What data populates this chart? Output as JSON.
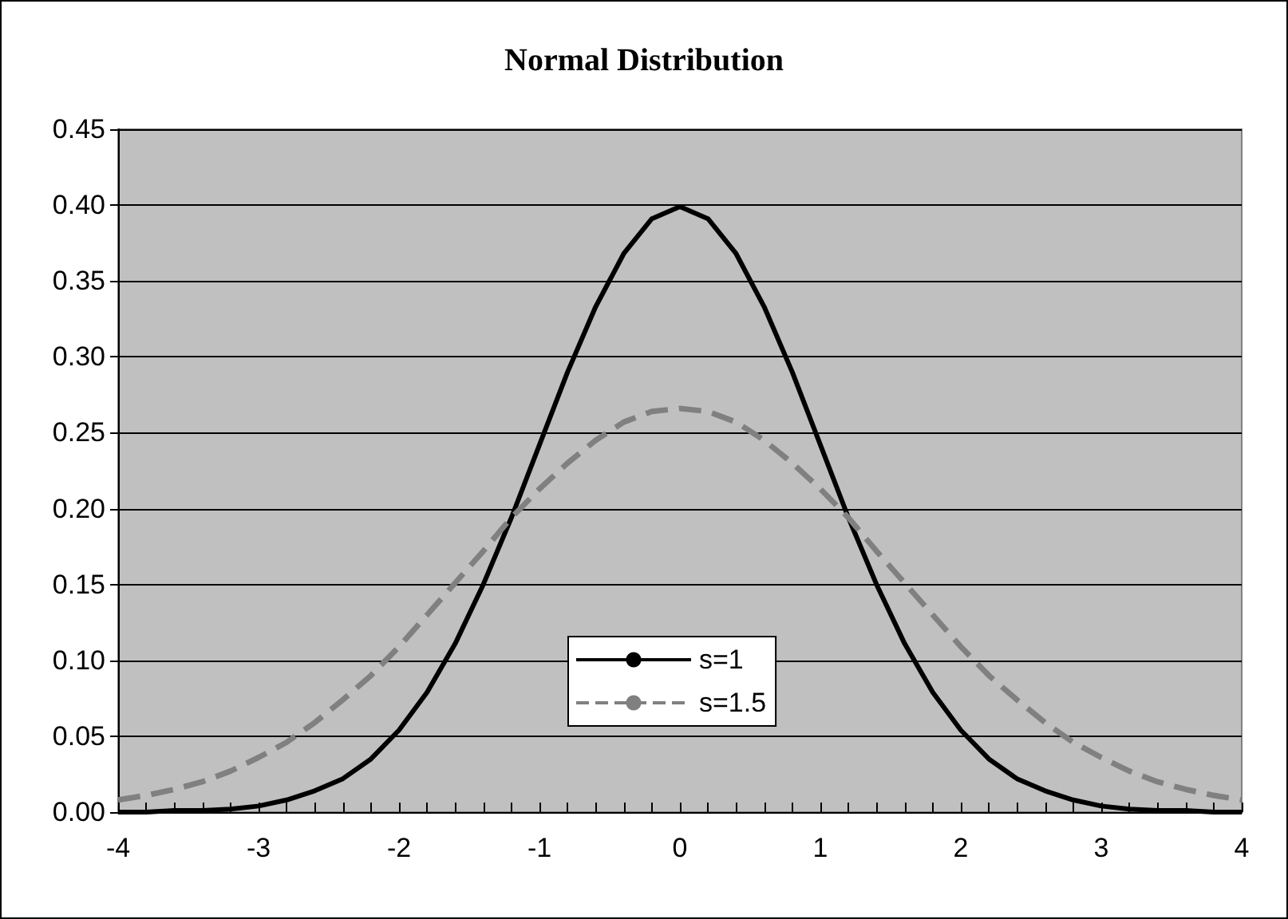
{
  "chart_data": {
    "type": "line",
    "title": "Normal Distribution",
    "x": [
      -4,
      -3.8,
      -3.6,
      -3.4,
      -3.2,
      -3,
      -2.8,
      -2.6,
      -2.4,
      -2.2,
      -2,
      -1.8,
      -1.6,
      -1.4,
      -1.2,
      -1,
      -0.8,
      -0.6,
      -0.4,
      -0.2,
      0,
      0.2,
      0.4,
      0.6,
      0.8,
      1,
      1.2,
      1.4,
      1.6,
      1.8,
      2,
      2.2,
      2.4,
      2.6,
      2.8,
      3,
      3.2,
      3.4,
      3.6,
      3.8,
      4
    ],
    "series": [
      {
        "name": "s=1",
        "color": "#000000",
        "line_style": "solid",
        "values": [
          0,
          0,
          0.001,
          0.001,
          0.002,
          0.004,
          0.008,
          0.014,
          0.022,
          0.035,
          0.054,
          0.079,
          0.111,
          0.15,
          0.194,
          0.242,
          0.29,
          0.333,
          0.368,
          0.391,
          0.399,
          0.391,
          0.368,
          0.333,
          0.29,
          0.242,
          0.194,
          0.15,
          0.111,
          0.079,
          0.054,
          0.035,
          0.022,
          0.014,
          0.008,
          0.004,
          0.002,
          0.001,
          0.001,
          0,
          0
        ]
      },
      {
        "name": "s=1.5",
        "color": "#808080",
        "line_style": "dashed",
        "values": [
          0.008,
          0.011,
          0.015,
          0.02,
          0.027,
          0.036,
          0.046,
          0.059,
          0.074,
          0.09,
          0.109,
          0.13,
          0.151,
          0.172,
          0.194,
          0.213,
          0.23,
          0.245,
          0.257,
          0.264,
          0.266,
          0.264,
          0.257,
          0.245,
          0.23,
          0.213,
          0.194,
          0.172,
          0.151,
          0.13,
          0.109,
          0.09,
          0.074,
          0.059,
          0.046,
          0.036,
          0.027,
          0.02,
          0.015,
          0.011,
          0.008
        ]
      }
    ],
    "xlim": [
      -4,
      4
    ],
    "xticks": [
      -4,
      -3,
      -2,
      -1,
      0,
      1,
      2,
      3,
      4
    ],
    "ylim": [
      0,
      0.45
    ],
    "yticks": [
      {
        "value": 0,
        "label": "0.00"
      },
      0.05,
      {
        "value": 0.1,
        "label": "0.10"
      },
      0.15,
      {
        "value": 0.2,
        "label": "0.20"
      },
      0.25,
      {
        "value": 0.3,
        "label": "0.30"
      },
      0.35,
      {
        "value": 0.4,
        "label": "0.40"
      },
      0.45
    ],
    "grid": "y",
    "legend": "bottom",
    "marker": "none"
  }
}
